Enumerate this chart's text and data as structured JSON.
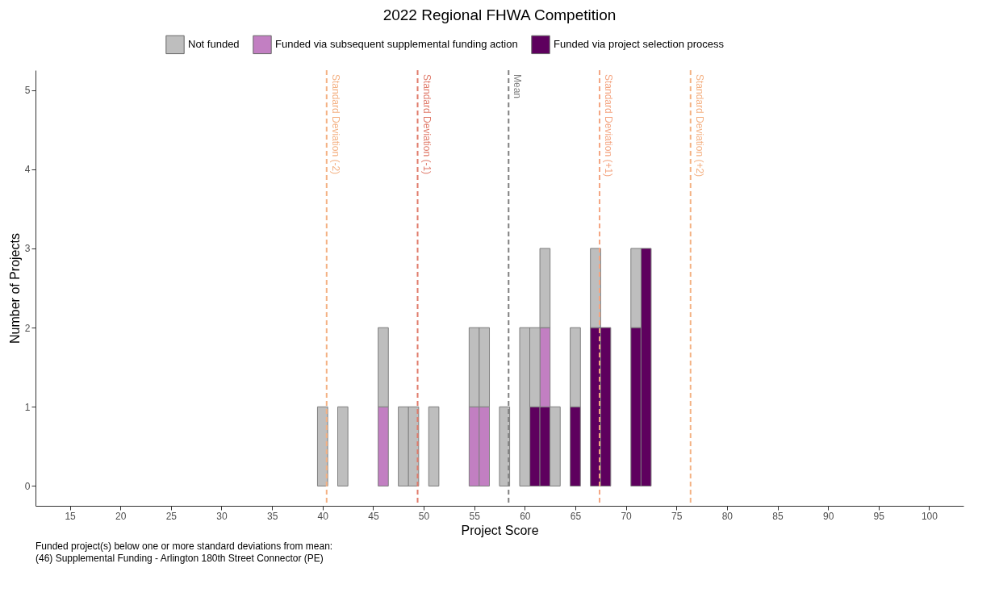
{
  "chart_data": {
    "type": "bar",
    "stacked": true,
    "title": "2022 Regional FHWA Competition",
    "xlabel": "Project Score",
    "ylabel": "Number of Projects",
    "x": [
      40,
      42,
      46,
      48,
      49,
      51,
      55,
      56,
      58,
      60,
      61,
      62,
      63,
      65,
      67,
      68,
      71,
      72
    ],
    "series": [
      {
        "name": "Funded via project selection process",
        "color": "#5e005e",
        "values": [
          null,
          null,
          null,
          null,
          null,
          null,
          null,
          null,
          null,
          null,
          1,
          1,
          null,
          1,
          2,
          2,
          2,
          3
        ]
      },
      {
        "name": "Funded via subsequent supplemental funding action",
        "color": "#c27fc2",
        "values": [
          null,
          null,
          1,
          null,
          null,
          null,
          1,
          1,
          null,
          null,
          null,
          1,
          null,
          null,
          null,
          null,
          null,
          null
        ]
      },
      {
        "name": "Not funded",
        "color": "#bebebe",
        "values": [
          1,
          1,
          1,
          1,
          1,
          1,
          1,
          1,
          1,
          2,
          1,
          1,
          1,
          1,
          1,
          null,
          1,
          null
        ]
      }
    ],
    "xlim": [
      12,
      103
    ],
    "xticks": [
      15,
      20,
      25,
      30,
      35,
      40,
      45,
      50,
      55,
      60,
      65,
      70,
      75,
      80,
      85,
      90,
      95,
      100
    ],
    "ylim": [
      -0.25,
      5.25
    ],
    "yticks": [
      0,
      1,
      2,
      3,
      4,
      5
    ],
    "ref_lines": [
      {
        "axis": "x",
        "value": 40.4,
        "label": "Standard Deviation (-2)",
        "color": "#f4b183",
        "line_style": "dashed"
      },
      {
        "axis": "x",
        "value": 49.4,
        "label": "Standard Deviation (-1)",
        "color": "#e07b6b",
        "line_style": "dashed"
      },
      {
        "axis": "x",
        "value": 58.4,
        "label": "Mean",
        "color": "#808080",
        "line_style": "dashed"
      },
      {
        "axis": "x",
        "value": 67.4,
        "label": "Standard Deviation (+1)",
        "color": "#f4a582",
        "line_style": "dashed"
      },
      {
        "axis": "x",
        "value": 76.4,
        "label": "Standard Deviation (+2)",
        "color": "#f4b183",
        "line_style": "dashed"
      }
    ],
    "annotations": [
      "Funded project(s) below one or more standard deviations from mean:",
      "(46) Supplemental Funding - Arlington 180th Street Connector (PE)"
    ],
    "legend": "top",
    "grid": false
  }
}
